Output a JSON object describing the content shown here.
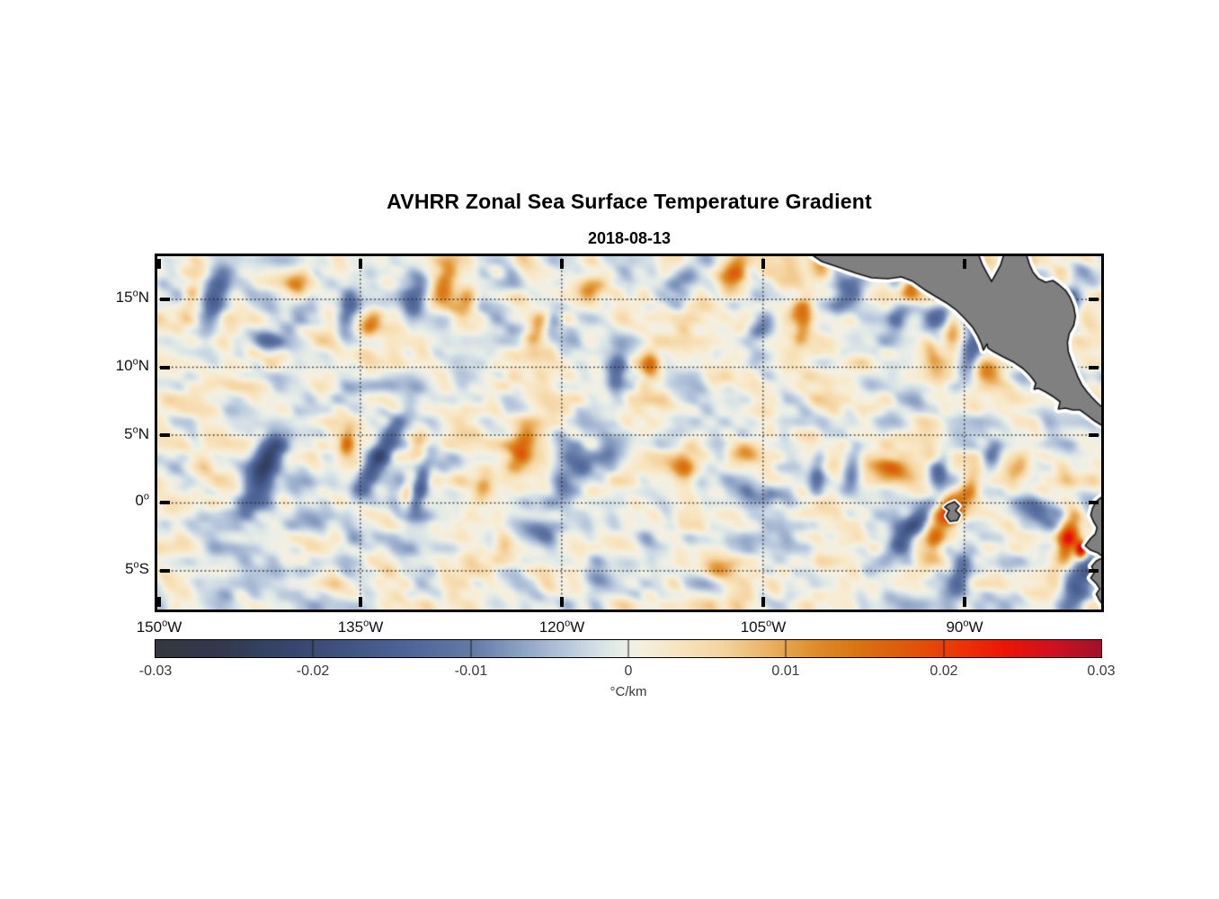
{
  "chart_data": {
    "type": "heatmap",
    "title": "AVHRR Zonal Sea Surface Temperature Gradient",
    "subtitle": "2018-08-13",
    "units": "°C/km",
    "lon_range": [
      -150.13,
      -79.8
    ],
    "lat_range": [
      -7.85,
      18.18
    ],
    "value_range": [
      -0.03,
      0.03
    ],
    "grid": {
      "lat_lines": [
        15,
        10,
        5,
        0,
        -5
      ],
      "lon_lines": [
        -135,
        -120,
        -105,
        -90
      ],
      "style": "dotted",
      "color": "#2b2b2b"
    },
    "axes": {
      "x_tick_lons": [
        -150,
        -135,
        -120,
        -105,
        -90
      ],
      "y_tick_lats": [
        15,
        10,
        5,
        0,
        -5
      ],
      "x_tick_labels": [
        {
          "num": "150",
          "sup": "o",
          "hem": "W"
        },
        {
          "num": "135",
          "sup": "o",
          "hem": "W"
        },
        {
          "num": "120",
          "sup": "o",
          "hem": "W"
        },
        {
          "num": "105",
          "sup": "o",
          "hem": "W"
        },
        {
          "num": "90",
          "sup": "o",
          "hem": "W"
        }
      ],
      "y_tick_labels": [
        {
          "num": "15",
          "sup": "o",
          "hem": "N"
        },
        {
          "num": "10",
          "sup": "o",
          "hem": "N"
        },
        {
          "num": "5",
          "sup": "o",
          "hem": "N"
        },
        {
          "num": "0",
          "sup": "o",
          "hem": ""
        },
        {
          "num": "5",
          "sup": "o",
          "hem": "S"
        }
      ]
    },
    "colorbar": {
      "min": -0.03,
      "max": 0.03,
      "tick_values": [
        -0.03,
        -0.02,
        -0.01,
        0,
        0.01,
        0.02,
        0.03
      ],
      "ticks": [
        "-0.03",
        "-0.02",
        "-0.01",
        "0",
        "0.01",
        "0.02",
        "0.03"
      ],
      "label": "°C/km"
    },
    "colormap_stops": [
      [
        -0.03,
        "#343840"
      ],
      [
        -0.026,
        "#32394e"
      ],
      [
        -0.022,
        "#35456a"
      ],
      [
        -0.018,
        "#405383"
      ],
      [
        -0.014,
        "#4f6598"
      ],
      [
        -0.01,
        "#6379a6"
      ],
      [
        -0.007,
        "#8ba0c3"
      ],
      [
        -0.004,
        "#b7c6dc"
      ],
      [
        -0.002,
        "#d5e0e6"
      ],
      [
        -0.001,
        "#e2eae5"
      ],
      [
        0.0,
        "#efefe8"
      ],
      [
        0.001,
        "#f6efdd"
      ],
      [
        0.003,
        "#f8e6c3"
      ],
      [
        0.006,
        "#f5d4a0"
      ],
      [
        0.009,
        "#eab162"
      ],
      [
        0.012,
        "#de8c28"
      ],
      [
        0.015,
        "#d97010"
      ],
      [
        0.018,
        "#e25509"
      ],
      [
        0.021,
        "#ee3507"
      ],
      [
        0.024,
        "#ed1407"
      ],
      [
        0.027,
        "#cf1120"
      ],
      [
        0.03,
        "#a3122a"
      ]
    ],
    "land": {
      "fill": "#808080",
      "outline": "#141414",
      "coastal_halo": "#ffffff",
      "polygons": {
        "central_america": [
          [
            -101.55,
            18.4
          ],
          [
            -88.98,
            18.4
          ],
          [
            -88.64,
            17.52
          ],
          [
            -88.24,
            16.79
          ],
          [
            -87.97,
            16.32
          ],
          [
            -87.7,
            16.79
          ],
          [
            -87.3,
            17.52
          ],
          [
            -87.03,
            18.4
          ],
          [
            -85.41,
            18.4
          ],
          [
            -85.15,
            17.58
          ],
          [
            -84.88,
            16.99
          ],
          [
            -84.48,
            16.52
          ],
          [
            -83.94,
            16.26
          ],
          [
            -83.4,
            16.39
          ],
          [
            -82.93,
            16.06
          ],
          [
            -82.46,
            15.66
          ],
          [
            -82.12,
            15.13
          ],
          [
            -81.85,
            14.47
          ],
          [
            -81.72,
            13.74
          ],
          [
            -81.85,
            13.08
          ],
          [
            -82.19,
            12.48
          ],
          [
            -82.32,
            11.82
          ],
          [
            -82.26,
            11.16
          ],
          [
            -82.05,
            10.56
          ],
          [
            -81.79,
            9.9
          ],
          [
            -81.52,
            9.24
          ],
          [
            -81.25,
            8.71
          ],
          [
            -80.85,
            8.18
          ],
          [
            -80.44,
            7.72
          ],
          [
            -80.04,
            7.32
          ],
          [
            -79.64,
            6.99
          ],
          [
            -79.0,
            6.72
          ],
          [
            -79.0,
            5.4
          ],
          [
            -79.77,
            5.73
          ],
          [
            -80.31,
            6.06
          ],
          [
            -80.85,
            6.46
          ],
          [
            -81.38,
            6.85
          ],
          [
            -81.92,
            6.85
          ],
          [
            -82.46,
            6.99
          ],
          [
            -83.0,
            6.92
          ],
          [
            -82.86,
            7.45
          ],
          [
            -83.4,
            7.85
          ],
          [
            -83.94,
            8.18
          ],
          [
            -84.48,
            8.44
          ],
          [
            -84.81,
            8.38
          ],
          [
            -84.68,
            8.84
          ],
          [
            -85.08,
            9.37
          ],
          [
            -85.62,
            9.9
          ],
          [
            -86.29,
            10.36
          ],
          [
            -87.1,
            10.76
          ],
          [
            -87.84,
            11.16
          ],
          [
            -88.24,
            11.42
          ],
          [
            -88.31,
            11.72
          ],
          [
            -88.58,
            11.26
          ],
          [
            -88.71,
            11.69
          ],
          [
            -88.98,
            12.28
          ],
          [
            -89.38,
            12.95
          ],
          [
            -89.98,
            13.61
          ],
          [
            -90.66,
            14.27
          ],
          [
            -91.33,
            14.74
          ],
          [
            -92.0,
            15.13
          ],
          [
            -92.88,
            15.66
          ],
          [
            -93.82,
            16.32
          ],
          [
            -94.69,
            16.66
          ],
          [
            -95.7,
            16.52
          ],
          [
            -96.91,
            16.59
          ],
          [
            -98.05,
            16.92
          ],
          [
            -99.4,
            17.38
          ],
          [
            -100.61,
            17.78
          ]
        ],
        "south_america": [
          [
            -79.0,
            0.76
          ],
          [
            -79.77,
            0.43
          ],
          [
            -80.17,
            0.1
          ],
          [
            -80.44,
            -0.36
          ],
          [
            -80.58,
            -0.89
          ],
          [
            -80.38,
            -1.36
          ],
          [
            -80.11,
            -1.82
          ],
          [
            -80.24,
            -2.28
          ],
          [
            -80.65,
            -2.68
          ],
          [
            -80.98,
            -3.15
          ],
          [
            -80.58,
            -3.48
          ],
          [
            -80.04,
            -3.68
          ],
          [
            -79.64,
            -4.01
          ],
          [
            -80.17,
            -4.27
          ],
          [
            -80.51,
            -4.67
          ],
          [
            -80.31,
            -5.13
          ],
          [
            -80.58,
            -5.53
          ],
          [
            -80.17,
            -5.93
          ],
          [
            -79.91,
            -6.32
          ],
          [
            -80.17,
            -6.72
          ],
          [
            -79.91,
            -7.19
          ],
          [
            -79.64,
            -7.58
          ],
          [
            -79.0,
            -7.95
          ]
        ],
        "galapagos": [
          [
            -91.2,
            -0.1
          ],
          [
            -90.73,
            0.1
          ],
          [
            -90.39,
            -0.23
          ],
          [
            -90.66,
            -0.56
          ],
          [
            -90.32,
            -0.89
          ],
          [
            -90.53,
            -1.29
          ],
          [
            -91.06,
            -1.36
          ],
          [
            -91.33,
            -0.96
          ],
          [
            -91.13,
            -0.56
          ],
          [
            -91.46,
            -0.3
          ]
        ]
      }
    },
    "field": {
      "noise": {
        "seed1": 11,
        "amp1": 0.0052,
        "scale1_lon": 2.3,
        "scale1_lat": 1.5,
        "shear1": 0.55,
        "seed2": 29,
        "amp2": 0.0036,
        "scale2_lon": 1.05,
        "scale2_lat": 0.85,
        "shear2": 0.3
      },
      "features": [
        [
          -147.6,
          15.5,
          0.009,
          0.45,
          0.8,
          -20
        ],
        [
          -145.9,
          14.8,
          -0.015,
          0.6,
          1.7,
          -15
        ],
        [
          -139.6,
          15.9,
          0.012,
          0.6,
          1.1,
          -25
        ],
        [
          -141.7,
          12.0,
          -0.009,
          0.9,
          0.55,
          -15
        ],
        [
          -136.0,
          13.8,
          -0.011,
          0.5,
          1.25,
          -10
        ],
        [
          -134.2,
          13.2,
          0.013,
          0.5,
          0.9,
          -30
        ],
        [
          -130.9,
          15.0,
          -0.012,
          0.55,
          1.4,
          -15
        ],
        [
          -128.8,
          16.1,
          0.012,
          0.55,
          1.5,
          -15
        ],
        [
          -127.0,
          15.0,
          0.012,
          0.55,
          1.2,
          -20
        ],
        [
          -123.7,
          16.2,
          -0.009,
          0.9,
          0.55,
          -5
        ],
        [
          -121.9,
          12.8,
          0.01,
          0.5,
          0.9,
          -25
        ],
        [
          -120.6,
          13.1,
          -0.008,
          0.5,
          0.8,
          -20
        ],
        [
          -117.9,
          15.7,
          0.009,
          0.8,
          0.5,
          10
        ],
        [
          -115.8,
          10.1,
          -0.011,
          0.5,
          1.1,
          -10
        ],
        [
          -113.5,
          10.0,
          0.009,
          0.5,
          0.9,
          -20
        ],
        [
          -111.0,
          16.5,
          -0.009,
          0.6,
          0.9,
          -25
        ],
        [
          -107.0,
          17.2,
          0.015,
          0.7,
          1.2,
          -20
        ],
        [
          -105.3,
          12.7,
          -0.01,
          0.55,
          0.9,
          -30
        ],
        [
          -105.2,
          10.5,
          -0.008,
          0.8,
          0.55,
          -20
        ],
        [
          -102.3,
          14.3,
          0.012,
          0.55,
          1.0,
          -35
        ],
        [
          -102.0,
          13.0,
          0.01,
          0.45,
          1.0,
          -15
        ],
        [
          -100.5,
          17.3,
          0.008,
          0.6,
          0.5,
          0
        ],
        [
          -98.7,
          15.3,
          -0.012,
          0.65,
          1.3,
          -25
        ],
        [
          -94.8,
          13.8,
          -0.013,
          0.55,
          1.1,
          -20
        ],
        [
          -94.0,
          15.8,
          0.014,
          0.5,
          0.85,
          -30
        ],
        [
          -92.1,
          13.8,
          -0.013,
          0.65,
          1.1,
          -25
        ],
        [
          -91.3,
          15.7,
          0.016,
          0.5,
          1.0,
          -25
        ],
        [
          -90.9,
          12.7,
          0.013,
          0.5,
          1.2,
          -10
        ],
        [
          -89.4,
          11.2,
          -0.016,
          0.55,
          1.4,
          -15
        ],
        [
          -92.4,
          10.8,
          0.013,
          0.5,
          1.4,
          15
        ],
        [
          -88.2,
          9.6,
          0.012,
          0.9,
          0.55,
          -40
        ],
        [
          -82.1,
          14.8,
          -0.011,
          0.5,
          1.0,
          -15
        ],
        [
          -81.4,
          17.2,
          -0.009,
          0.6,
          0.5,
          0
        ],
        [
          -142.4,
          2.1,
          -0.016,
          0.75,
          2.2,
          -18
        ],
        [
          -141.6,
          3.7,
          -0.013,
          0.7,
          1.1,
          -28
        ],
        [
          -136.0,
          4.5,
          0.017,
          0.45,
          0.8,
          -10
        ],
        [
          -133.7,
          3.3,
          -0.021,
          0.55,
          2.4,
          -30
        ],
        [
          -130.7,
          4.5,
          0.014,
          0.55,
          0.75,
          -20
        ],
        [
          -130.4,
          1.5,
          -0.013,
          0.4,
          1.5,
          -15
        ],
        [
          -131.5,
          0.9,
          0.009,
          0.35,
          1.0,
          -10
        ],
        [
          -130.6,
          -1.3,
          -0.011,
          0.9,
          0.65,
          -20
        ],
        [
          -135.4,
          -2.6,
          -0.008,
          0.55,
          0.5,
          0
        ],
        [
          -138.3,
          -1.1,
          -0.006,
          1.1,
          0.5,
          -25
        ],
        [
          -123.0,
          4.1,
          0.014,
          0.6,
          1.3,
          -20
        ],
        [
          -125.9,
          1.0,
          0.01,
          0.5,
          0.9,
          -20
        ],
        [
          -121.5,
          -2.3,
          -0.01,
          1.0,
          0.6,
          -15
        ],
        [
          -124.4,
          -3.3,
          0.009,
          0.6,
          0.6,
          0
        ],
        [
          -119.5,
          1.8,
          -0.012,
          0.9,
          1.5,
          -30
        ],
        [
          -116.5,
          3.8,
          -0.012,
          0.9,
          1.3,
          -30
        ],
        [
          -117.5,
          -5.6,
          -0.008,
          0.7,
          0.6,
          -10
        ],
        [
          -110.6,
          2.8,
          0.013,
          0.75,
          1.5,
          -25
        ],
        [
          -108.1,
          -5.0,
          0.008,
          0.8,
          0.5,
          -10
        ],
        [
          -106.4,
          3.9,
          0.01,
          0.8,
          0.5,
          -15
        ],
        [
          -104.6,
          0.6,
          -0.01,
          1.2,
          0.5,
          -10
        ],
        [
          -100.9,
          2.3,
          -0.012,
          0.45,
          1.2,
          -5
        ],
        [
          -98.4,
          2.3,
          -0.012,
          0.5,
          1.3,
          -10
        ],
        [
          -95.6,
          2.6,
          0.014,
          1.2,
          0.6,
          -20
        ],
        [
          -91.9,
          2.4,
          -0.012,
          0.5,
          0.9,
          -15
        ],
        [
          -94.0,
          -1.9,
          -0.015,
          0.5,
          1.9,
          -40
        ],
        [
          -91.0,
          -0.6,
          0.024,
          0.5,
          0.7,
          0
        ],
        [
          -92.1,
          -2.2,
          0.016,
          0.55,
          1.2,
          -15
        ],
        [
          -90.3,
          -5.3,
          -0.012,
          0.55,
          1.4,
          -10
        ],
        [
          -89.7,
          1.0,
          0.013,
          0.55,
          1.0,
          -25
        ],
        [
          -87.9,
          3.6,
          -0.013,
          0.55,
          1.1,
          -15
        ],
        [
          -85.9,
          2.6,
          0.01,
          0.5,
          0.8,
          -20
        ],
        [
          -84.0,
          -0.9,
          -0.013,
          1.3,
          0.75,
          -15
        ],
        [
          -82.3,
          -2.7,
          0.023,
          0.55,
          1.3,
          -10
        ],
        [
          -81.3,
          -3.5,
          0.03,
          0.3,
          0.45,
          0
        ],
        [
          -81.5,
          -6.0,
          -0.019,
          0.75,
          1.7,
          -20
        ]
      ]
    }
  }
}
